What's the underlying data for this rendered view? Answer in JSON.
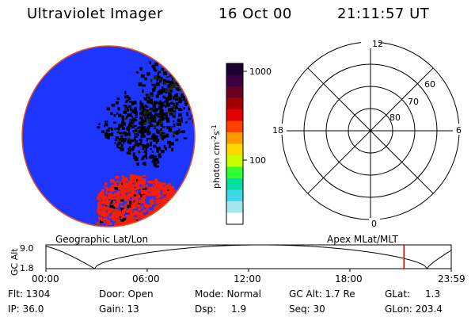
{
  "header": {
    "instrument": "Ultraviolet Imager",
    "date": "16 Oct 00",
    "time": "21:11:57 UT"
  },
  "image_panel": {
    "disk_color": "#1e34ff",
    "rim_color": "#e0502a"
  },
  "colorbar": {
    "label": "photon cm",
    "exp1": "-2",
    "mid": "s",
    "exp2": "-1",
    "ticks": [
      {
        "label": "1000",
        "value": 1000
      },
      {
        "label": "100",
        "value": 100
      }
    ],
    "colors": [
      "#1a0033",
      "#3a0040",
      "#6a0020",
      "#a00000",
      "#e00000",
      "#ff4000",
      "#ff9a00",
      "#ffd800",
      "#c8ff00",
      "#30ff30",
      "#00e0a0",
      "#40d8e8",
      "#a0e8f0",
      "#ffffff"
    ]
  },
  "polar": {
    "lat_labels": [
      "60",
      "70",
      "80"
    ],
    "mlt_labels": {
      "top": "12",
      "bottom": "0",
      "left": "18",
      "right": "6"
    }
  },
  "orbit_plot": {
    "left_title": "Geographic Lat/Lon",
    "right_title": "Apex MLat/MLT",
    "ylabel": "GC Alt",
    "yticks": [
      "9.0",
      "1.8"
    ],
    "xticks": [
      "00:00",
      "06:00",
      "12:00",
      "18:00",
      "23:59"
    ],
    "marker_fraction": 0.8833,
    "marker_color": "#cc0000"
  },
  "info": {
    "row1": {
      "flt": "Flt: 1304",
      "door": "Door: Open",
      "mode": "Mode: Normal",
      "gcalt": "GC Alt: 1.7 Re",
      "glat_label": "GLat:",
      "glat_value": "1.3"
    },
    "row2": {
      "ip": "IP: 36.0",
      "gain": "Gain: 13",
      "dsp_label": "Dsp:",
      "dsp_value": "1.9",
      "seq": "Seq: 30",
      "glon": "GLon: 203.4"
    }
  }
}
